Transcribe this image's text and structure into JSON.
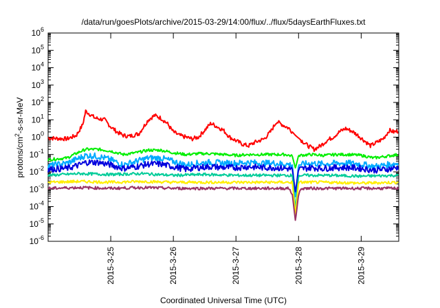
{
  "chart_data": {
    "type": "line",
    "title": "/data/run/goesPlots/archive/2015-03-29/14:00/flux/../flux/5daysEarthFluxes.txt",
    "xlabel": "Coordinated Universal Time (UTC)",
    "ylabel": "protons/cm2-s-sr-MeV",
    "ylabel_parts": {
      "before": "protons/cm",
      "superscript": "2",
      "after": "-s-sr-MeV"
    },
    "yscale": "log",
    "ylim": [
      1e-06,
      1000000.0
    ],
    "y_ticks": [
      {
        "exp": -6,
        "base": "10",
        "power": "-6"
      },
      {
        "exp": -5,
        "base": "10",
        "power": "-5"
      },
      {
        "exp": -4,
        "base": "10",
        "power": "-4"
      },
      {
        "exp": -3,
        "base": "10",
        "power": "-3"
      },
      {
        "exp": -2,
        "base": "10",
        "power": "-2"
      },
      {
        "exp": -1,
        "base": "10",
        "power": "-1"
      },
      {
        "exp": 0,
        "base": "10",
        "power": "0"
      },
      {
        "exp": 1,
        "base": "10",
        "power": "1"
      },
      {
        "exp": 2,
        "base": "10",
        "power": "2"
      },
      {
        "exp": 3,
        "base": "10",
        "power": "3"
      },
      {
        "exp": 4,
        "base": "10",
        "power": "4"
      },
      {
        "exp": 5,
        "base": "10",
        "power": "5"
      },
      {
        "exp": 6,
        "base": "10",
        "power": "6"
      }
    ],
    "xlim_days": [
      0,
      5.6
    ],
    "x_ticks": [
      {
        "label": "2015-3-25",
        "day": 1
      },
      {
        "label": "2015-3-26",
        "day": 2
      },
      {
        "label": "2015-3-27",
        "day": 3
      },
      {
        "label": "2015-3-28",
        "day": 4
      },
      {
        "label": "2015-3-29",
        "day": 5
      }
    ],
    "grid": false,
    "legend": "none",
    "series": [
      {
        "color": "#ff0000",
        "points": [
          [
            0,
            -0.05
          ],
          [
            0.3,
            -0.1
          ],
          [
            0.45,
            0.1
          ],
          [
            0.55,
            0.7
          ],
          [
            0.6,
            1.5
          ],
          [
            0.75,
            1.1
          ],
          [
            0.9,
            1.0
          ],
          [
            1.0,
            0.6
          ],
          [
            1.1,
            0.3
          ],
          [
            1.2,
            0.1
          ],
          [
            1.3,
            0.05
          ],
          [
            1.45,
            0.2
          ],
          [
            1.6,
            1.0
          ],
          [
            1.7,
            1.25
          ],
          [
            1.8,
            1.1
          ],
          [
            1.9,
            0.8
          ],
          [
            2.0,
            0.3
          ],
          [
            2.1,
            0.1
          ],
          [
            2.2,
            0.0
          ],
          [
            2.3,
            -0.1
          ],
          [
            2.4,
            0.0
          ],
          [
            2.5,
            0.4
          ],
          [
            2.6,
            0.8
          ],
          [
            2.7,
            0.6
          ],
          [
            2.8,
            0.4
          ],
          [
            2.9,
            0.0
          ],
          [
            3.0,
            -0.2
          ],
          [
            3.1,
            -0.4
          ],
          [
            3.2,
            -0.5
          ],
          [
            3.3,
            -0.3
          ],
          [
            3.45,
            -0.1
          ],
          [
            3.55,
            0.3
          ],
          [
            3.65,
            0.9
          ],
          [
            3.75,
            0.7
          ],
          [
            3.85,
            0.5
          ],
          [
            3.95,
            0.1
          ],
          [
            4.05,
            -0.2
          ],
          [
            4.15,
            -0.5
          ],
          [
            4.25,
            -0.7
          ],
          [
            4.35,
            -0.5
          ],
          [
            4.45,
            -0.2
          ],
          [
            4.55,
            0.0
          ],
          [
            4.65,
            0.3
          ],
          [
            4.75,
            0.5
          ],
          [
            4.85,
            0.35
          ],
          [
            4.95,
            0.1
          ],
          [
            5.05,
            -0.2
          ],
          [
            5.15,
            -0.5
          ],
          [
            5.25,
            -0.3
          ],
          [
            5.35,
            -0.1
          ],
          [
            5.45,
            0.4
          ],
          [
            5.52,
            0.3
          ],
          [
            5.6,
            0.35
          ]
        ]
      },
      {
        "color": "#00ee00",
        "points": [
          [
            0,
            -1.3
          ],
          [
            0.3,
            -1.2
          ],
          [
            0.5,
            -0.85
          ],
          [
            0.6,
            -0.7
          ],
          [
            0.8,
            -0.7
          ],
          [
            1.0,
            -0.8
          ],
          [
            1.2,
            -1.0
          ],
          [
            1.4,
            -0.9
          ],
          [
            1.6,
            -0.75
          ],
          [
            1.8,
            -0.75
          ],
          [
            2.0,
            -0.9
          ],
          [
            2.2,
            -1.0
          ],
          [
            2.4,
            -0.95
          ],
          [
            2.6,
            -0.95
          ],
          [
            2.8,
            -1.0
          ],
          [
            3.0,
            -1.05
          ],
          [
            3.2,
            -1.0
          ],
          [
            3.4,
            -1.0
          ],
          [
            3.6,
            -1.0
          ],
          [
            3.8,
            -1.0
          ],
          [
            3.9,
            -1.1
          ],
          [
            3.95,
            -1.8
          ],
          [
            4.0,
            -1.05
          ],
          [
            4.2,
            -1.0
          ],
          [
            4.4,
            -1.05
          ],
          [
            4.6,
            -1.0
          ],
          [
            4.8,
            -1.0
          ],
          [
            5.0,
            -1.05
          ],
          [
            5.2,
            -1.2
          ],
          [
            5.4,
            -1.1
          ],
          [
            5.6,
            -1.0
          ]
        ]
      },
      {
        "color": "#00aaff",
        "points": [
          [
            0,
            -1.65
          ],
          [
            0.3,
            -1.5
          ],
          [
            0.5,
            -1.2
          ],
          [
            0.6,
            -1.05
          ],
          [
            0.8,
            -1.1
          ],
          [
            1.0,
            -1.3
          ],
          [
            1.2,
            -1.6
          ],
          [
            1.4,
            -1.4
          ],
          [
            1.6,
            -1.2
          ],
          [
            1.8,
            -1.2
          ],
          [
            2.0,
            -1.4
          ],
          [
            2.2,
            -1.6
          ],
          [
            2.4,
            -1.5
          ],
          [
            2.6,
            -1.45
          ],
          [
            2.8,
            -1.5
          ],
          [
            3.0,
            -1.5
          ],
          [
            3.2,
            -1.45
          ],
          [
            3.4,
            -1.5
          ],
          [
            3.6,
            -1.5
          ],
          [
            3.8,
            -1.55
          ],
          [
            3.9,
            -1.6
          ],
          [
            3.95,
            -3.5
          ],
          [
            4.0,
            -1.6
          ],
          [
            4.2,
            -1.5
          ],
          [
            4.4,
            -1.55
          ],
          [
            4.6,
            -1.5
          ],
          [
            4.8,
            -1.5
          ],
          [
            5.0,
            -1.55
          ],
          [
            5.2,
            -1.7
          ],
          [
            5.4,
            -1.6
          ],
          [
            5.6,
            -1.5
          ]
        ]
      },
      {
        "color": "#0000dd",
        "points": [
          [
            0,
            -1.85
          ],
          [
            0.3,
            -1.8
          ],
          [
            0.5,
            -1.6
          ],
          [
            0.6,
            -1.45
          ],
          [
            0.8,
            -1.45
          ],
          [
            1.0,
            -1.6
          ],
          [
            1.2,
            -1.8
          ],
          [
            1.4,
            -1.7
          ],
          [
            1.6,
            -1.55
          ],
          [
            1.8,
            -1.55
          ],
          [
            2.0,
            -1.7
          ],
          [
            2.2,
            -1.85
          ],
          [
            2.4,
            -1.75
          ],
          [
            2.6,
            -1.7
          ],
          [
            2.8,
            -1.75
          ],
          [
            3.0,
            -1.75
          ],
          [
            3.2,
            -1.7
          ],
          [
            3.4,
            -1.75
          ],
          [
            3.6,
            -1.75
          ],
          [
            3.8,
            -1.8
          ],
          [
            3.9,
            -1.85
          ],
          [
            3.95,
            -3.2
          ],
          [
            4.0,
            -1.85
          ],
          [
            4.2,
            -1.75
          ],
          [
            4.4,
            -1.8
          ],
          [
            4.6,
            -1.75
          ],
          [
            4.8,
            -1.75
          ],
          [
            5.0,
            -1.8
          ],
          [
            5.2,
            -1.9
          ],
          [
            5.4,
            -1.85
          ],
          [
            5.6,
            -1.75
          ]
        ]
      },
      {
        "color": "#00cc99",
        "points": [
          [
            0,
            -2.2
          ],
          [
            0.5,
            -2.1
          ],
          [
            1.0,
            -2.15
          ],
          [
            1.5,
            -2.1
          ],
          [
            2.0,
            -2.2
          ],
          [
            2.5,
            -2.15
          ],
          [
            3.0,
            -2.2
          ],
          [
            3.5,
            -2.2
          ],
          [
            3.9,
            -2.2
          ],
          [
            3.95,
            -4.2
          ],
          [
            4.0,
            -2.2
          ],
          [
            4.5,
            -2.2
          ],
          [
            5.0,
            -2.25
          ],
          [
            5.6,
            -2.2
          ]
        ]
      },
      {
        "color": "#ffee00",
        "points": [
          [
            0,
            -2.6
          ],
          [
            0.5,
            -2.55
          ],
          [
            1.0,
            -2.6
          ],
          [
            1.5,
            -2.55
          ],
          [
            2.0,
            -2.6
          ],
          [
            2.5,
            -2.6
          ],
          [
            3.0,
            -2.6
          ],
          [
            3.5,
            -2.6
          ],
          [
            3.9,
            -2.6
          ],
          [
            3.95,
            -4.5
          ],
          [
            4.0,
            -2.6
          ],
          [
            4.5,
            -2.6
          ],
          [
            5.0,
            -2.65
          ],
          [
            5.6,
            -2.6
          ]
        ]
      },
      {
        "color": "#993366",
        "points": [
          [
            0,
            -2.95
          ],
          [
            0.5,
            -2.9
          ],
          [
            1.0,
            -2.95
          ],
          [
            1.5,
            -2.9
          ],
          [
            2.0,
            -2.95
          ],
          [
            2.5,
            -2.95
          ],
          [
            3.0,
            -2.95
          ],
          [
            3.5,
            -2.95
          ],
          [
            3.85,
            -2.95
          ],
          [
            3.9,
            -3.3
          ],
          [
            3.95,
            -4.85
          ],
          [
            4.0,
            -3.3
          ],
          [
            4.05,
            -2.95
          ],
          [
            4.5,
            -2.95
          ],
          [
            5.0,
            -2.95
          ],
          [
            5.6,
            -2.95
          ]
        ]
      }
    ]
  }
}
